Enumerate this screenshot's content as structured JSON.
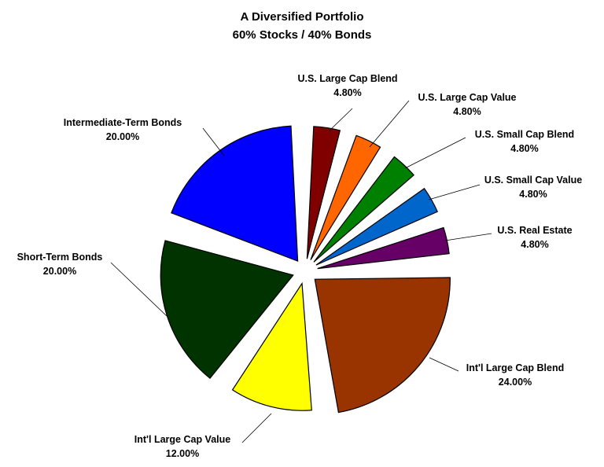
{
  "chart_data": {
    "type": "pie",
    "title": "A Diversified Portfolio",
    "subtitle": "60% Stocks / 40% Bonds",
    "slices": [
      {
        "label": "U.S. Large Cap Blend",
        "value": 4.8,
        "display": "4.80%",
        "color": "#800000"
      },
      {
        "label": "U.S. Large Cap Value",
        "value": 4.8,
        "display": "4.80%",
        "color": "#ff6600"
      },
      {
        "label": "U.S. Small Cap Blend",
        "value": 4.8,
        "display": "4.80%",
        "color": "#008000"
      },
      {
        "label": "U.S. Small Cap Value",
        "value": 4.8,
        "display": "4.80%",
        "color": "#0066cc"
      },
      {
        "label": "U.S. Real Estate",
        "value": 4.8,
        "display": "4.80%",
        "color": "#660066"
      },
      {
        "label": "Int'l Large Cap Blend",
        "value": 24.0,
        "display": "24.00%",
        "color": "#993300"
      },
      {
        "label": "Int'l Large Cap Value",
        "value": 12.0,
        "display": "12.00%",
        "color": "#ffff00"
      },
      {
        "label": "Short-Term Bonds",
        "value": 20.0,
        "display": "20.00%",
        "color": "#003300"
      },
      {
        "label": "Intermediate-Term Bonds",
        "value": 20.0,
        "display": "20.00%",
        "color": "#0000ff"
      }
    ],
    "exploded": true,
    "legend": "none"
  }
}
